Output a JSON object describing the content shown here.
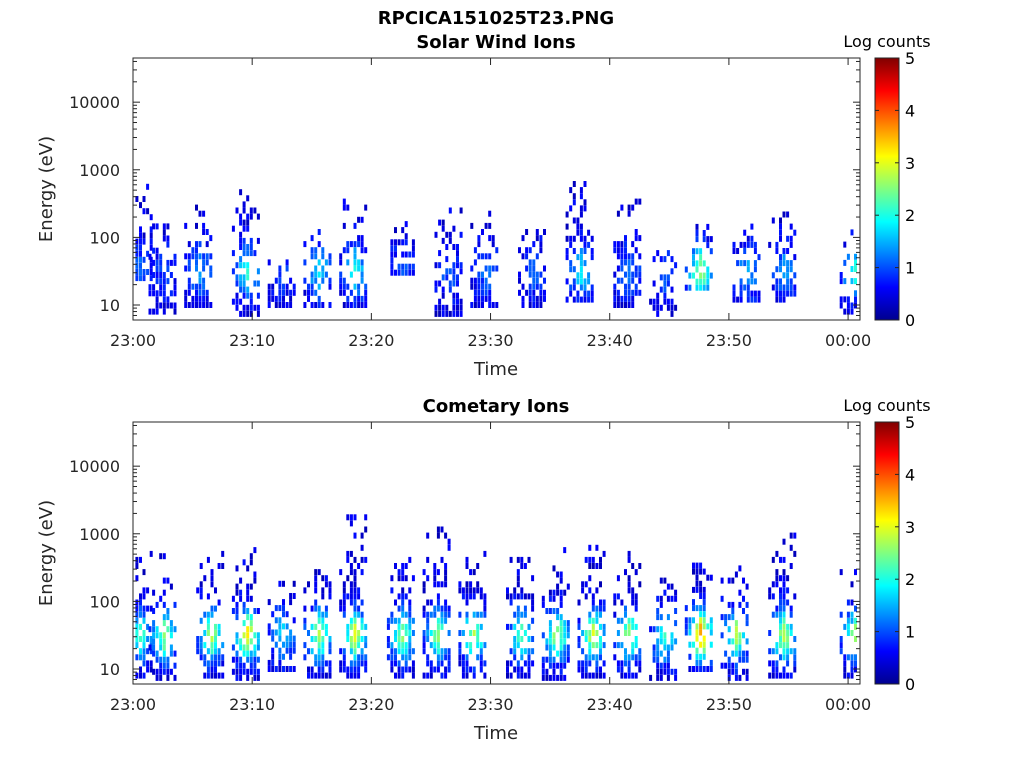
{
  "figure_title": "RPCICA151025T23.PNG",
  "colormap": [
    "#00008f",
    "#0000ff",
    "#0080ff",
    "#00ffff",
    "#80ff80",
    "#ffff00",
    "#ff8000",
    "#ff0000",
    "#800000"
  ],
  "chart_data": [
    {
      "type": "heatmap",
      "title": "Solar Wind Ions",
      "xlabel": "Time",
      "ylabel": "Energy (eV)",
      "y_scale": "log",
      "xlim": [
        "23:00",
        "00:01"
      ],
      "ylim": [
        6,
        45000
      ],
      "x_ticks": [
        "23:00",
        "23:10",
        "23:20",
        "23:30",
        "23:40",
        "23:50",
        "00:00"
      ],
      "y_ticks": [
        10,
        100,
        1000,
        10000
      ],
      "y_tick_labels": [
        "10",
        "100",
        "1000",
        "10000"
      ],
      "colorbar": {
        "label": "Log counts",
        "range": [
          0,
          5
        ],
        "ticks": [
          "0",
          "1",
          "2",
          "3",
          "4",
          "5"
        ]
      },
      "bursts": [
        {
          "t": "23:00",
          "e_lo": 25,
          "e_hi": 600,
          "peak": 1.0
        },
        {
          "t": "23:02",
          "e_lo": 8,
          "e_hi": 200,
          "peak": 0.8
        },
        {
          "t": "23:05",
          "e_lo": 10,
          "e_hi": 280,
          "peak": 1.2
        },
        {
          "t": "23:09",
          "e_lo": 6,
          "e_hi": 500,
          "peak": 1.9
        },
        {
          "t": "23:12",
          "e_lo": 10,
          "e_hi": 50,
          "peak": 0.8
        },
        {
          "t": "23:15",
          "e_lo": 10,
          "e_hi": 180,
          "peak": 1.6
        },
        {
          "t": "23:18",
          "e_lo": 10,
          "e_hi": 500,
          "peak": 1.8
        },
        {
          "t": "23:22",
          "e_lo": 30,
          "e_hi": 200,
          "peak": 0.9
        },
        {
          "t": "23:26",
          "e_lo": 6,
          "e_hi": 350,
          "peak": 0.9
        },
        {
          "t": "23:29",
          "e_lo": 10,
          "e_hi": 250,
          "peak": 1.0
        },
        {
          "t": "23:33",
          "e_lo": 10,
          "e_hi": 150,
          "peak": 0.9
        },
        {
          "t": "23:37",
          "e_lo": 12,
          "e_hi": 750,
          "peak": 1.6
        },
        {
          "t": "23:41",
          "e_lo": 10,
          "e_hi": 450,
          "peak": 1.0
        },
        {
          "t": "23:44",
          "e_lo": 6,
          "e_hi": 60,
          "peak": 0.9
        },
        {
          "t": "23:47",
          "e_lo": 18,
          "e_hi": 160,
          "peak": 2.5
        },
        {
          "t": "23:51",
          "e_lo": 12,
          "e_hi": 200,
          "peak": 1.3
        },
        {
          "t": "23:54",
          "e_lo": 12,
          "e_hi": 220,
          "peak": 1.2
        },
        {
          "t": "00:00",
          "e_lo": 8,
          "e_hi": 150,
          "peak": 1.9
        }
      ]
    },
    {
      "type": "heatmap",
      "title": "Cometary Ions",
      "xlabel": "Time",
      "ylabel": "Energy (eV)",
      "y_scale": "log",
      "xlim": [
        "23:00",
        "00:01"
      ],
      "ylim": [
        6,
        45000
      ],
      "x_ticks": [
        "23:00",
        "23:10",
        "23:20",
        "23:30",
        "23:40",
        "23:50",
        "00:00"
      ],
      "y_ticks": [
        10,
        100,
        1000,
        10000
      ],
      "y_tick_labels": [
        "10",
        "100",
        "1000",
        "10000"
      ],
      "colorbar": {
        "label": "Log counts",
        "range": [
          0,
          5
        ],
        "ticks": [
          "0",
          "1",
          "2",
          "3",
          "4",
          "5"
        ]
      },
      "bursts": [
        {
          "t": "23:00",
          "e_lo": 8,
          "e_hi": 650,
          "peak": 2.0
        },
        {
          "t": "23:02",
          "e_lo": 6,
          "e_hi": 500,
          "peak": 2.4
        },
        {
          "t": "23:06",
          "e_lo": 8,
          "e_hi": 550,
          "peak": 2.6
        },
        {
          "t": "23:09",
          "e_lo": 6,
          "e_hi": 700,
          "peak": 3.0
        },
        {
          "t": "23:12",
          "e_lo": 10,
          "e_hi": 200,
          "peak": 1.5
        },
        {
          "t": "23:15",
          "e_lo": 8,
          "e_hi": 450,
          "peak": 2.6
        },
        {
          "t": "23:18",
          "e_lo": 8,
          "e_hi": 2500,
          "peak": 2.8
        },
        {
          "t": "23:22",
          "e_lo": 8,
          "e_hi": 600,
          "peak": 2.4
        },
        {
          "t": "23:25",
          "e_lo": 8,
          "e_hi": 1300,
          "peak": 2.5
        },
        {
          "t": "23:28",
          "e_lo": 8,
          "e_hi": 600,
          "peak": 2.6
        },
        {
          "t": "23:32",
          "e_lo": 8,
          "e_hi": 600,
          "peak": 2.2
        },
        {
          "t": "23:35",
          "e_lo": 6,
          "e_hi": 600,
          "peak": 2.6
        },
        {
          "t": "23:38",
          "e_lo": 8,
          "e_hi": 900,
          "peak": 2.8
        },
        {
          "t": "23:41",
          "e_lo": 8,
          "e_hi": 600,
          "peak": 2.5
        },
        {
          "t": "23:44",
          "e_lo": 6,
          "e_hi": 400,
          "peak": 2.0
        },
        {
          "t": "23:47",
          "e_lo": 10,
          "e_hi": 500,
          "peak": 3.6
        },
        {
          "t": "23:50",
          "e_lo": 6,
          "e_hi": 350,
          "peak": 2.6
        },
        {
          "t": "23:54",
          "e_lo": 8,
          "e_hi": 1200,
          "peak": 2.6
        },
        {
          "t": "00:00",
          "e_lo": 8,
          "e_hi": 300,
          "peak": 2.4
        }
      ]
    }
  ]
}
